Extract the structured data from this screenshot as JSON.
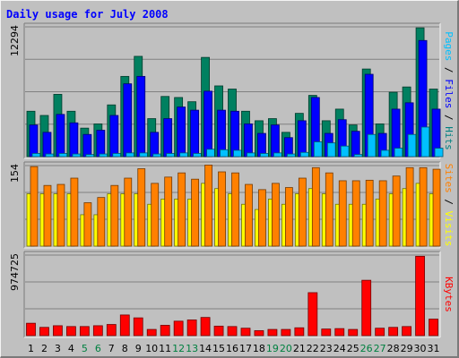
{
  "chart_data": {
    "type": "bar",
    "title": "Daily usage for July 2008",
    "categories": [
      "1",
      "2",
      "3",
      "4",
      "5",
      "6",
      "7",
      "8",
      "9",
      "10",
      "11",
      "12",
      "13",
      "14",
      "15",
      "16",
      "17",
      "18",
      "19",
      "20",
      "21",
      "22",
      "23",
      "24",
      "25",
      "26",
      "27",
      "28",
      "29",
      "30",
      "31"
    ],
    "weekend_days": [
      "5",
      "6",
      "12",
      "13",
      "19",
      "20",
      "26",
      "27"
    ],
    "panels": [
      {
        "id": "hits",
        "scale_max_label": "12294",
        "scale_max": 12294,
        "axis_label_parts": [
          {
            "text": "Pages",
            "color": "#00c0ff"
          },
          {
            "text": " / ",
            "color": "#000000"
          },
          {
            "text": "Files",
            "color": "#0000ff"
          },
          {
            "text": " / ",
            "color": "#000000"
          },
          {
            "text": "Hits",
            "color": "#008080"
          }
        ],
        "series": [
          {
            "name": "Hits",
            "color": "#008060",
            "values": [
              4300,
              3900,
              5900,
              4300,
              2700,
              3100,
              4900,
              7600,
              9500,
              3600,
              5700,
              5600,
              5200,
              9400,
              6700,
              6400,
              4300,
              3400,
              3600,
              2300,
              4100,
              5800,
              3400,
              4500,
              3000,
              8300,
              3100,
              6100,
              6600,
              12200,
              6400
            ]
          },
          {
            "name": "Files",
            "color": "#0000ff",
            "values": [
              3000,
              2300,
              4000,
              3200,
              2100,
              2500,
              3900,
              6900,
              7600,
              2300,
              3600,
              4700,
              4400,
              6200,
              4400,
              4300,
              3100,
              2200,
              3000,
              1800,
              3400,
              5600,
              2200,
              3500,
              2400,
              7800,
              2200,
              4500,
              5100,
              11000,
              4500
            ]
          },
          {
            "name": "Pages",
            "color": "#00c0ff",
            "values": [
              300,
              250,
              300,
              250,
              200,
              250,
              300,
              350,
              350,
              250,
              300,
              350,
              300,
              700,
              650,
              600,
              350,
              300,
              350,
              250,
              400,
              1400,
              1300,
              1000,
              200,
              2100,
              600,
              800,
              2100,
              2800,
              800
            ]
          }
        ]
      },
      {
        "id": "visits",
        "scale_max_label": "154",
        "scale_max": 154,
        "axis_label_parts": [
          {
            "text": "Sites",
            "color": "#ff8000"
          },
          {
            "text": " / ",
            "color": "#000000"
          },
          {
            "text": "Visits",
            "color": "#ffff00"
          }
        ],
        "series": [
          {
            "name": "Visits",
            "color": "#ffff00",
            "values": [
              100,
              100,
              100,
              100,
              60,
              60,
              100,
              100,
              100,
              80,
              90,
              90,
              90,
              120,
              110,
              100,
              80,
              70,
              90,
              80,
              100,
              110,
              100,
              80,
              80,
              80,
              90,
              100,
              110,
              120,
              100
            ]
          },
          {
            "name": "Sites",
            "color": "#ff8000",
            "values": [
              152,
              116,
              118,
              130,
              83,
              93,
              116,
              130,
              148,
              120,
              132,
              140,
              128,
              155,
              142,
              140,
              118,
              108,
              120,
              112,
              130,
              150,
              140,
              125,
              125,
              126,
              125,
              134,
              150,
              150,
              147
            ]
          }
        ]
      },
      {
        "id": "kbytes",
        "scale_max_label": "974725",
        "scale_max": 974725,
        "axis_label_parts": [
          {
            "text": "KBytes",
            "color": "#ff0000"
          }
        ],
        "series": [
          {
            "name": "KBytes",
            "color": "#ff0000",
            "values": [
              150000,
              100000,
              120000,
              110000,
              110000,
              120000,
              135000,
              250000,
              215000,
              75000,
              125000,
              175000,
              190000,
              220000,
              115000,
              110000,
              90000,
              60000,
              75000,
              75000,
              95000,
              520000,
              80000,
              85000,
              75000,
              670000,
              90000,
              100000,
              110000,
              960000,
              200000
            ]
          }
        ]
      }
    ],
    "grid": true
  }
}
